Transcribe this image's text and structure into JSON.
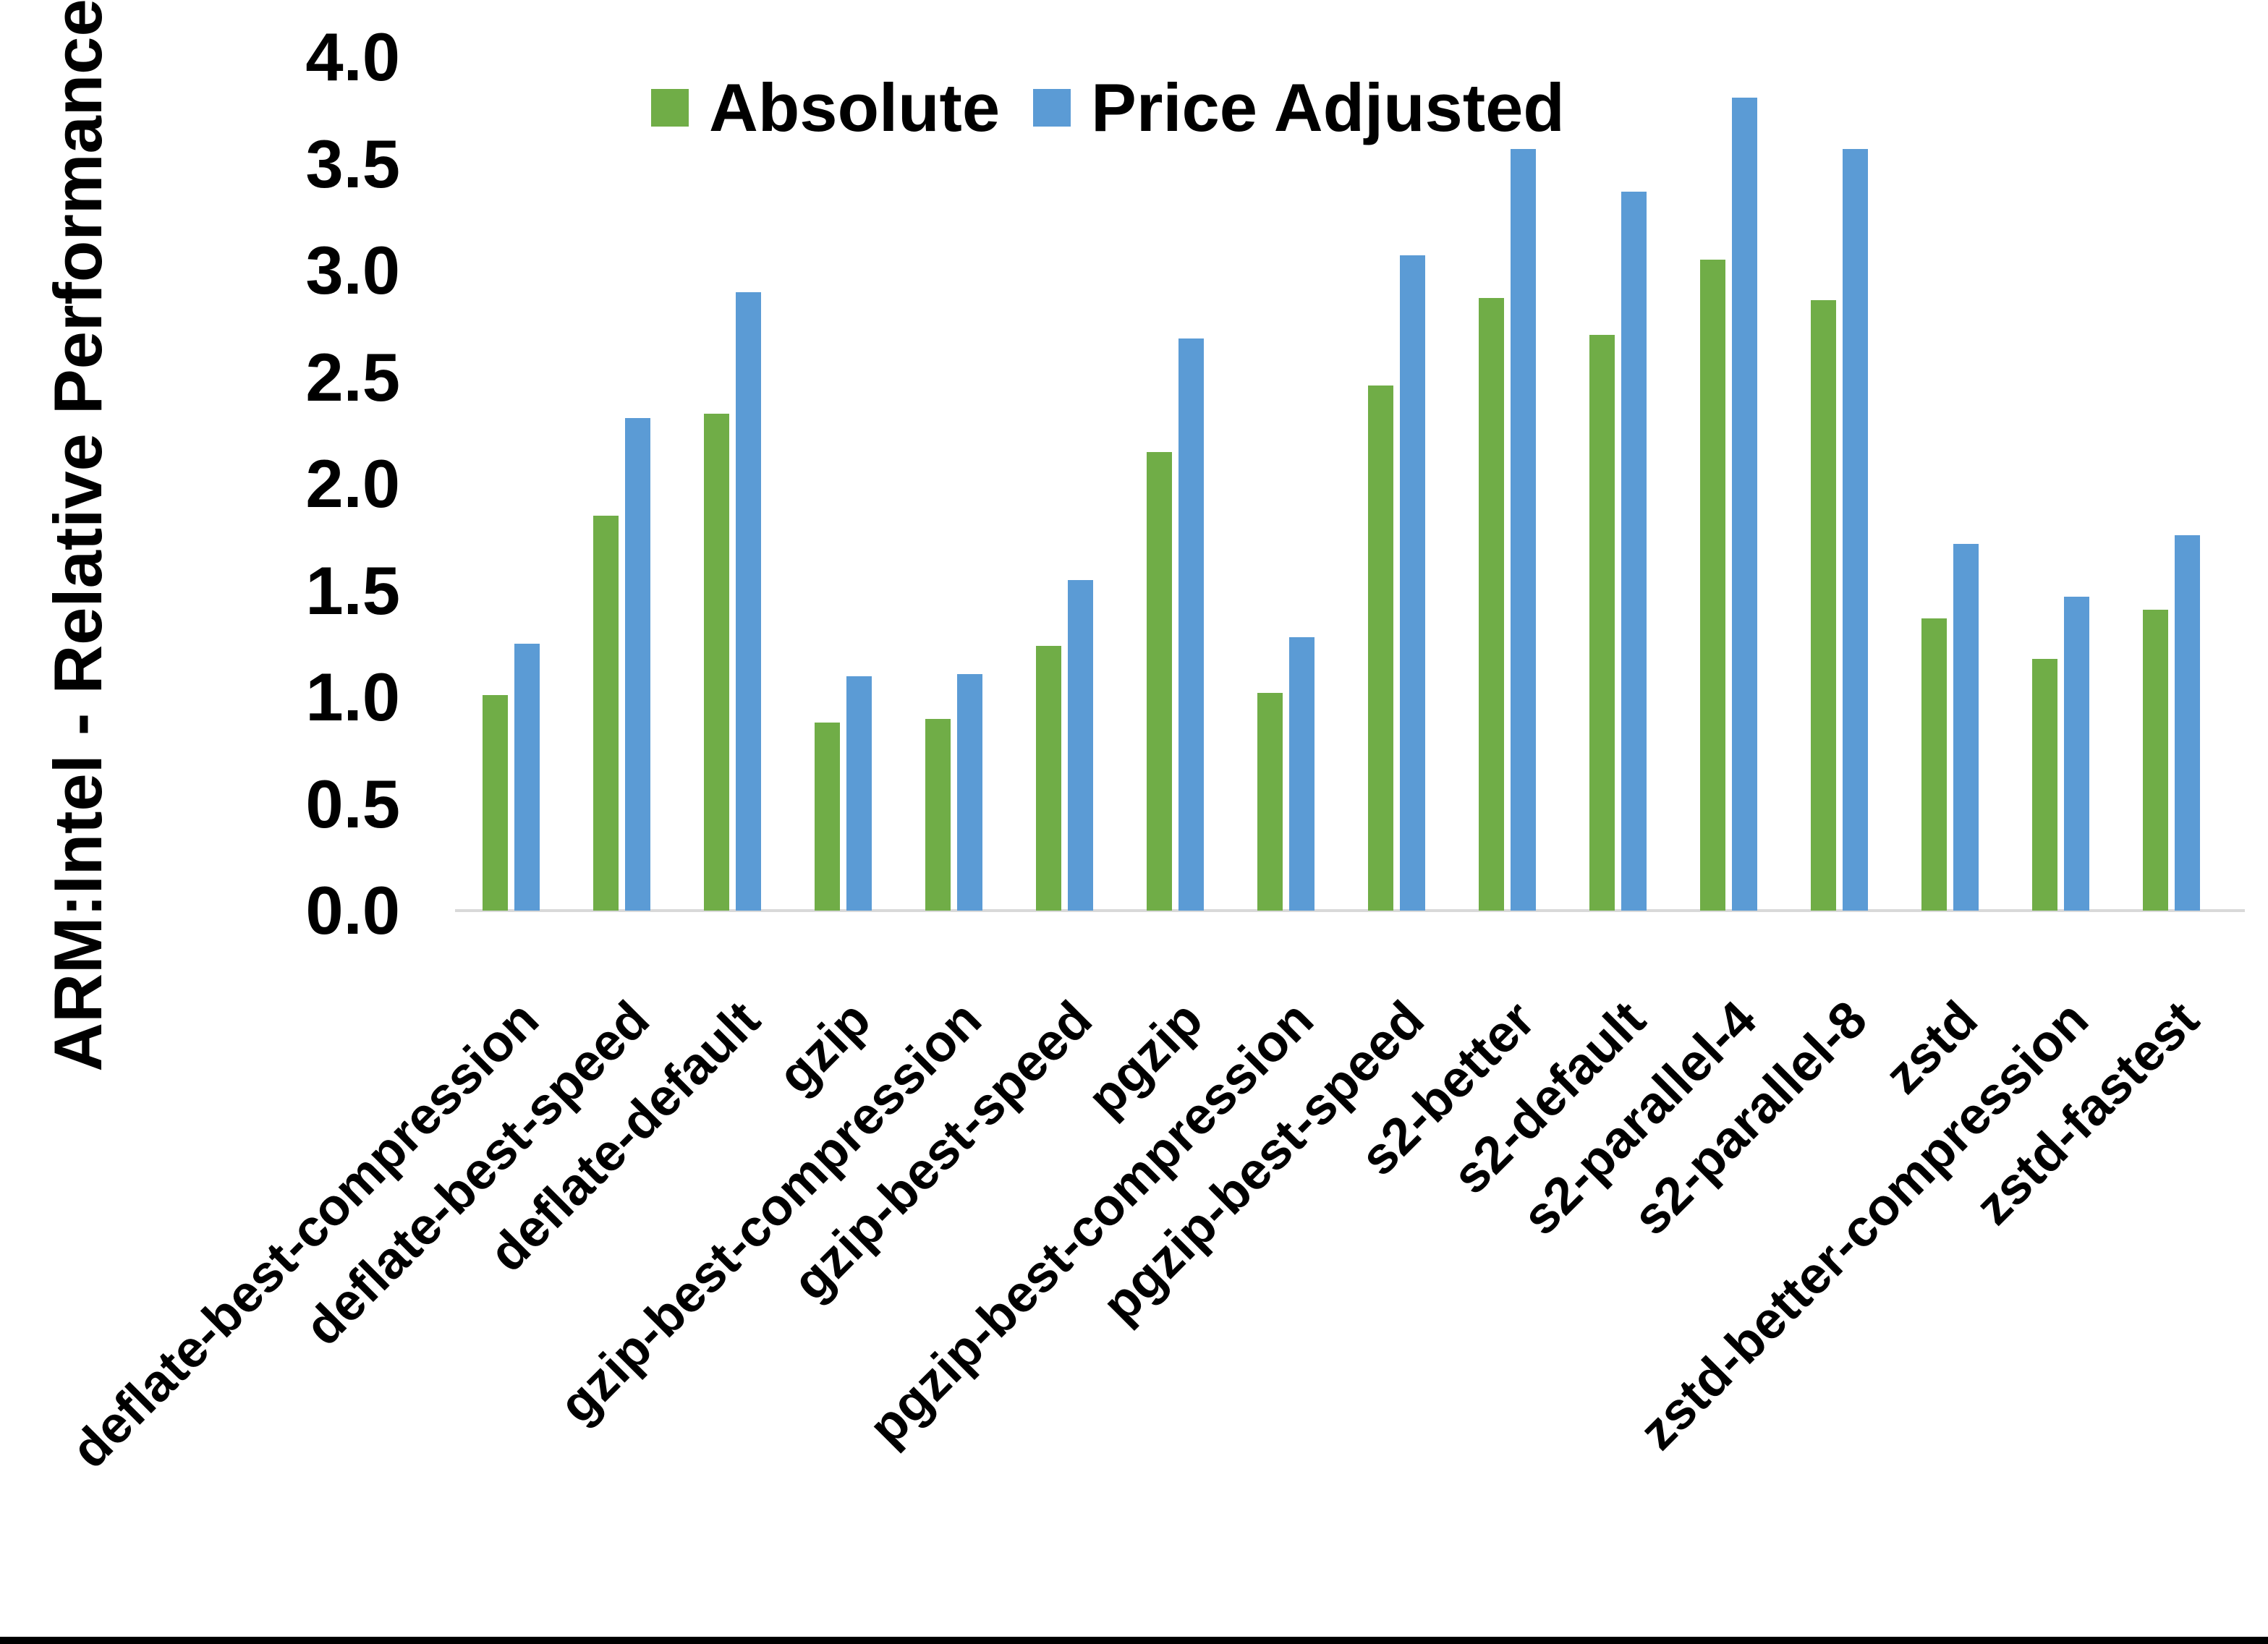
{
  "chart_data": {
    "type": "bar",
    "title": "",
    "y_axis_title": "ARM:Intel - Relative Performance",
    "legend_position": "top",
    "grid": false,
    "axis_line_color": "#D9D9D9",
    "ylim": [
      0.0,
      4.0
    ],
    "y_ticks": [
      "0.0",
      "0.5",
      "1.0",
      "1.5",
      "2.0",
      "2.5",
      "3.0",
      "3.5",
      "4.0"
    ],
    "categories": [
      "deflate-best-compression",
      "deflate-best-speed",
      "deflate-default",
      "gzip",
      "gzip-best-compression",
      "gzip-best-speed",
      "pgzip",
      "pgzip-best-compression",
      "pgzip-best-speed",
      "s2-better",
      "s2-default",
      "s2-parallel-4",
      "s2-parallel-8",
      "zstd",
      "zstd-better-compression",
      "zstd-fastest"
    ],
    "series": [
      {
        "name": "Absolute",
        "color": "#70AD47",
        "values": [
          1.01,
          1.85,
          2.33,
          0.88,
          0.9,
          1.24,
          2.15,
          1.02,
          2.46,
          2.87,
          2.7,
          3.05,
          2.86,
          1.37,
          1.18,
          1.41
        ]
      },
      {
        "name": "Price Adjusted",
        "color": "#5B9BD5",
        "values": [
          1.25,
          2.31,
          2.9,
          1.1,
          1.11,
          1.55,
          2.68,
          1.28,
          3.07,
          3.57,
          3.37,
          3.81,
          3.57,
          1.72,
          1.47,
          1.76
        ]
      }
    ]
  }
}
